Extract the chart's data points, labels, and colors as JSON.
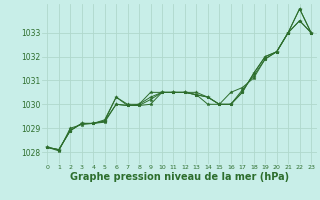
{
  "background_color": "#c8eee8",
  "grid_color": "#b0d8cc",
  "line_color": "#2d6e2d",
  "marker_color": "#2d6e2d",
  "xlabel": "Graphe pression niveau de la mer (hPa)",
  "xlabel_fontsize": 7,
  "ylim": [
    1027.5,
    1034.2
  ],
  "xlim": [
    -0.5,
    23.5
  ],
  "yticks": [
    1028,
    1029,
    1030,
    1031,
    1032,
    1033
  ],
  "xticks": [
    0,
    1,
    2,
    3,
    4,
    5,
    6,
    7,
    8,
    9,
    10,
    11,
    12,
    13,
    14,
    15,
    16,
    17,
    18,
    19,
    20,
    21,
    22,
    23
  ],
  "series": [
    [
      1028.2,
      1028.1,
      1028.9,
      1029.2,
      1029.2,
      1029.3,
      1030.3,
      1030.0,
      1030.0,
      1030.5,
      1030.5,
      1030.5,
      1030.5,
      1030.5,
      1030.3,
      1030.0,
      1030.0,
      1030.5,
      1031.3,
      1032.0,
      1032.2,
      1033.0,
      1033.5,
      1033.0
    ],
    [
      1028.2,
      1028.1,
      1028.9,
      1029.2,
      1029.2,
      1029.35,
      1030.3,
      1029.95,
      1029.95,
      1030.2,
      1030.5,
      1030.5,
      1030.5,
      1030.4,
      1030.3,
      1030.0,
      1030.0,
      1030.6,
      1031.2,
      1031.9,
      1032.2,
      1033.0,
      1034.0,
      1033.0
    ],
    [
      1028.2,
      1028.05,
      1029.0,
      1029.15,
      1029.2,
      1029.25,
      1030.0,
      1029.95,
      1029.95,
      1030.0,
      1030.5,
      1030.5,
      1030.5,
      1030.4,
      1030.0,
      1030.0,
      1030.5,
      1030.7,
      1031.1,
      1031.9,
      1032.2,
      1033.0,
      1034.0,
      1033.0
    ],
    [
      1028.2,
      1028.1,
      1028.9,
      1029.2,
      1029.2,
      1029.3,
      1030.0,
      1029.95,
      1030.0,
      1030.3,
      1030.5,
      1030.5,
      1030.5,
      1030.4,
      1030.3,
      1030.0,
      1030.0,
      1030.5,
      1031.3,
      1032.0,
      1032.2,
      1033.0,
      1033.5,
      1033.0
    ]
  ]
}
